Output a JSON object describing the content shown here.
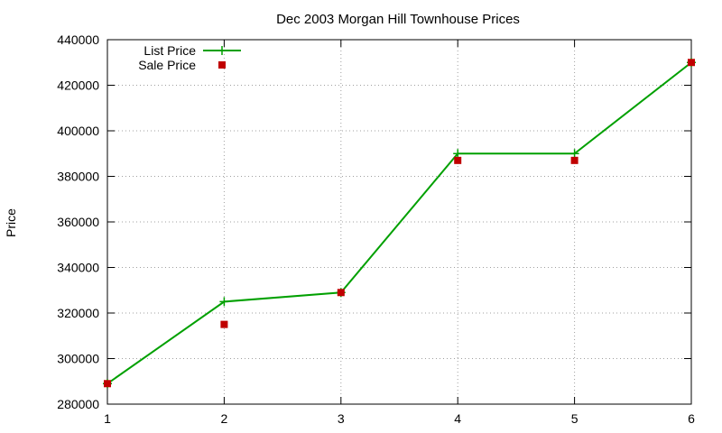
{
  "chart_data": {
    "type": "line",
    "title": "Dec 2003 Morgan Hill Townhouse Prices",
    "xlabel": "",
    "ylabel": "Price",
    "xlim": [
      1,
      6
    ],
    "ylim": [
      280000,
      440000
    ],
    "x_ticks": [
      "1",
      "2",
      "3",
      "4",
      "5",
      "6"
    ],
    "y_ticks": [
      "280000",
      "300000",
      "320000",
      "340000",
      "360000",
      "380000",
      "400000",
      "420000",
      "440000"
    ],
    "grid": true,
    "legend_position": "top-left",
    "x": [
      1,
      2,
      3,
      4,
      5,
      6
    ],
    "series": [
      {
        "name": "List Price",
        "style": "line-points",
        "marker": "plus",
        "color": "#00a000",
        "values": [
          289000,
          325000,
          329000,
          390000,
          390000,
          430000
        ]
      },
      {
        "name": "Sale Price",
        "style": "points",
        "marker": "square",
        "color": "#c00000",
        "values": [
          289000,
          315000,
          329000,
          387000,
          387000,
          430000
        ]
      }
    ]
  }
}
